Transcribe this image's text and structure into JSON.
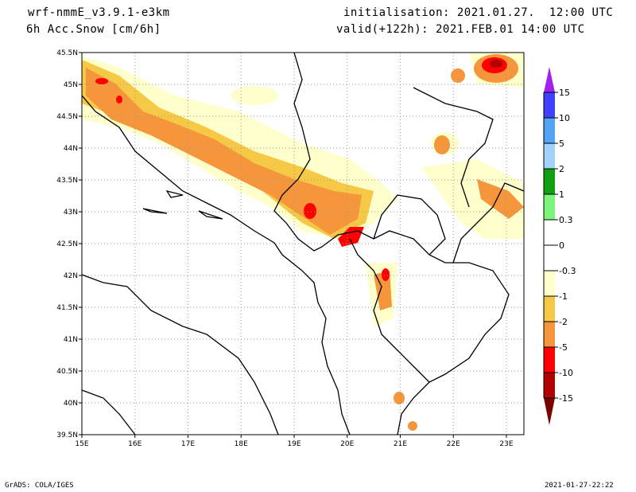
{
  "header": {
    "model": "wrf-nmmE_v3.9.1-e3km",
    "variable": "6h Acc.Snow [cm/6h]",
    "initialisation": "initialisation: 2021.01.27.  12:00 UTC",
    "valid": "valid(+122h): 2021.FEB.01 14:00 UTC"
  },
  "map": {
    "lon_labels": [
      "15E",
      "16E",
      "17E",
      "18E",
      "19E",
      "20E",
      "21E",
      "22E",
      "23E"
    ],
    "lat_labels": [
      "45.5N",
      "45N",
      "44.5N",
      "44N",
      "43.5N",
      "43N",
      "42.5N",
      "42N",
      "41.5N",
      "41N",
      "40.5N",
      "40N",
      "39.5N"
    ],
    "lon_range": [
      15,
      23.33
    ],
    "lat_range": [
      39.5,
      45.5
    ]
  },
  "legend": {
    "labels": [
      "15",
      "10",
      "5",
      "2",
      "1",
      "0.3",
      "0",
      "-0.3",
      "-1",
      "-2",
      "-5",
      "-10",
      "-15"
    ],
    "colors": [
      "#4040ff",
      "#50a5f5",
      "#a0d2fa",
      "#0fa00f",
      "#7af57a",
      "#ffffff",
      "#ffffff",
      "#ffffcc",
      "#f5c846",
      "#f5963c",
      "#ff0000",
      "#b40000"
    ],
    "top_arrow_color": "#a020f0",
    "bottom_arrow_color": "#780000"
  },
  "footer": {
    "left": "GrADS: COLA/IGES",
    "right": "2021-01-27-22:22"
  }
}
